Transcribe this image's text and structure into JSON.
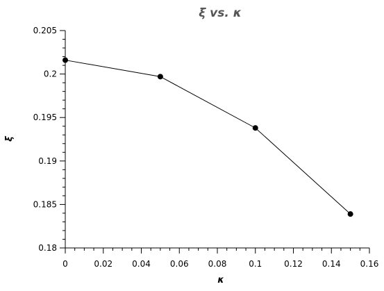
{
  "chart_data": {
    "type": "line",
    "title": "ξ vs. κ",
    "xlabel": "κ",
    "ylabel": "ξ",
    "xlim": [
      0,
      0.16
    ],
    "ylim": [
      0.18,
      0.205
    ],
    "x_ticks": [
      "0",
      "0.02",
      "0.04",
      "0.06",
      "0.08",
      "0.1",
      "0.12",
      "0.14",
      "0.16"
    ],
    "y_ticks": [
      "0.18",
      "0.185",
      "0.19",
      "0.195",
      "0.2",
      "0.205"
    ],
    "x_tick_values": [
      0,
      0.02,
      0.04,
      0.06,
      0.08,
      0.1,
      0.12,
      0.14,
      0.16
    ],
    "y_tick_values": [
      0.18,
      0.185,
      0.19,
      0.195,
      0.2,
      0.205
    ],
    "grid": false,
    "series": [
      {
        "x": [
          0,
          0.05,
          0.1,
          0.15
        ],
        "y": [
          0.2016,
          0.1997,
          0.1938,
          0.1839
        ],
        "color": "#000000",
        "marker": "circle"
      }
    ]
  }
}
